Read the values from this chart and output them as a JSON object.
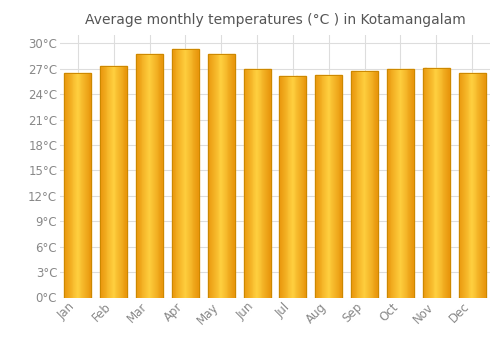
{
  "title": "Average monthly temperatures (°C ) in Kotamangalam",
  "months": [
    "Jan",
    "Feb",
    "Mar",
    "Apr",
    "May",
    "Jun",
    "Jul",
    "Aug",
    "Sep",
    "Oct",
    "Nov",
    "Dec"
  ],
  "values": [
    26.5,
    27.3,
    28.8,
    29.3,
    28.8,
    27.0,
    26.1,
    26.3,
    26.8,
    27.0,
    27.1,
    26.5
  ],
  "bar_color_edge": "#E8940A",
  "bar_color_center": "#FFD040",
  "background_color": "#ffffff",
  "grid_color": "#dddddd",
  "ylim": [
    0,
    31
  ],
  "yticks": [
    0,
    3,
    6,
    9,
    12,
    15,
    18,
    21,
    24,
    27,
    30
  ],
  "title_fontsize": 10,
  "tick_fontsize": 8.5
}
